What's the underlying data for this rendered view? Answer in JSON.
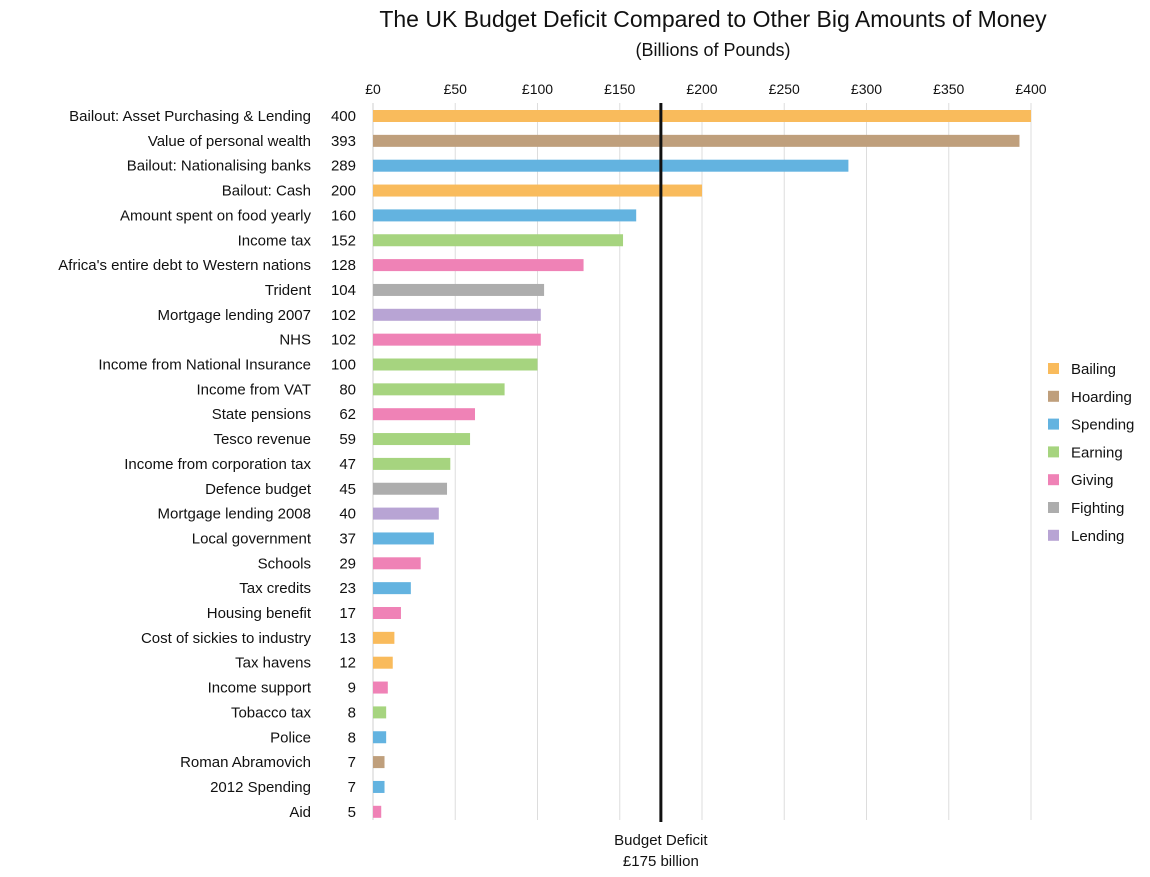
{
  "chart_data": {
    "type": "bar",
    "orientation": "horizontal",
    "title": "The UK Budget Deficit Compared to Other Big Amounts of Money",
    "subtitle": "(Billions of Pounds)",
    "xlim": [
      0,
      400
    ],
    "x_ticks": [
      {
        "value": 0,
        "label": "£0"
      },
      {
        "value": 50,
        "label": "£50"
      },
      {
        "value": 100,
        "label": "£100"
      },
      {
        "value": 150,
        "label": "£150"
      },
      {
        "value": 200,
        "label": "£200"
      },
      {
        "value": 250,
        "label": "£250"
      },
      {
        "value": 300,
        "label": "£300"
      },
      {
        "value": 350,
        "label": "£350"
      },
      {
        "value": 400,
        "label": "£400"
      }
    ],
    "grid": true,
    "legend_position": "right",
    "categories_legend": [
      {
        "name": "Bailing",
        "color": "#f9bb5c"
      },
      {
        "name": "Hoarding",
        "color": "#bf9f7c"
      },
      {
        "name": "Spending",
        "color": "#63b3e0"
      },
      {
        "name": "Earning",
        "color": "#a6d47f"
      },
      {
        "name": "Giving",
        "color": "#ef82b6"
      },
      {
        "name": "Fighting",
        "color": "#adadad"
      },
      {
        "name": "Lending",
        "color": "#b8a4d4"
      }
    ],
    "items": [
      {
        "label": "Bailout: Asset Purchasing & Lending",
        "value": 400,
        "value_label": "400",
        "category": "Bailing"
      },
      {
        "label": "Value of personal wealth",
        "value": 393,
        "value_label": "393",
        "category": "Hoarding"
      },
      {
        "label": "Bailout: Nationalising banks",
        "value": 289,
        "value_label": "289",
        "category": "Spending"
      },
      {
        "label": "Bailout: Cash",
        "value": 200,
        "value_label": "200",
        "category": "Bailing"
      },
      {
        "label": "Amount spent on food yearly",
        "value": 160,
        "value_label": "160",
        "category": "Spending"
      },
      {
        "label": "Income tax",
        "value": 152,
        "value_label": "152",
        "category": "Earning"
      },
      {
        "label": "Africa's entire debt to Western nations",
        "value": 128,
        "value_label": "128",
        "category": "Giving"
      },
      {
        "label": "Trident",
        "value": 104,
        "value_label": "104",
        "category": "Fighting"
      },
      {
        "label": "Mortgage lending 2007",
        "value": 102,
        "value_label": "102",
        "category": "Lending"
      },
      {
        "label": "NHS",
        "value": 102,
        "value_label": "102",
        "category": "Giving"
      },
      {
        "label": "Income from National Insurance",
        "value": 100,
        "value_label": "100",
        "category": "Earning"
      },
      {
        "label": "Income from VAT",
        "value": 80,
        "value_label": "80",
        "category": "Earning"
      },
      {
        "label": "State pensions",
        "value": 62,
        "value_label": "62",
        "category": "Giving"
      },
      {
        "label": "Tesco revenue",
        "value": 59,
        "value_label": "59",
        "category": "Earning"
      },
      {
        "label": "Income from corporation tax",
        "value": 47,
        "value_label": "47",
        "category": "Earning"
      },
      {
        "label": "Defence budget",
        "value": 45,
        "value_label": "45",
        "category": "Fighting"
      },
      {
        "label": "Mortgage lending 2008",
        "value": 40,
        "value_label": "40",
        "category": "Lending"
      },
      {
        "label": "Local government",
        "value": 37,
        "value_label": "37",
        "category": "Spending"
      },
      {
        "label": "Schools",
        "value": 29,
        "value_label": "29",
        "category": "Giving"
      },
      {
        "label": "Tax credits",
        "value": 23,
        "value_label": "23",
        "category": "Spending"
      },
      {
        "label": "Housing benefit",
        "value": 17,
        "value_label": "17",
        "category": "Giving"
      },
      {
        "label": "Cost of sickies to industry",
        "value": 13,
        "value_label": "13",
        "category": "Bailing"
      },
      {
        "label": "Tax havens",
        "value": 12,
        "value_label": "12",
        "category": "Bailing"
      },
      {
        "label": "Income support",
        "value": 9,
        "value_label": "9",
        "category": "Giving"
      },
      {
        "label": "Tobacco tax",
        "value": 8,
        "value_label": "8",
        "category": "Earning"
      },
      {
        "label": "Police",
        "value": 8,
        "value_label": "8",
        "category": "Spending"
      },
      {
        "label": "Roman Abramovich",
        "value": 7,
        "value_label": "7",
        "category": "Hoarding"
      },
      {
        "label": "2012 Spending",
        "value": 7,
        "value_label": "7",
        "category": "Spending"
      },
      {
        "label": "Aid",
        "value": 5,
        "value_label": "5",
        "category": "Giving"
      }
    ],
    "reference_line": {
      "value": 175,
      "label_line1": "Budget Deficit",
      "label_line2": "£175 billion",
      "color": "#111111"
    },
    "gridline_color": "#dddddd"
  }
}
